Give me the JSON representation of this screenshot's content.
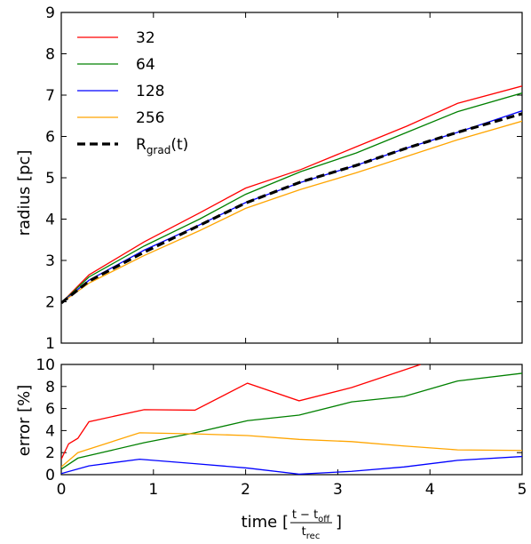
{
  "chart_data": [
    {
      "type": "line",
      "ylabel": "radius [pc]",
      "xlim": [
        0,
        5
      ],
      "ylim": [
        1,
        9
      ],
      "x_ticks": [
        "0",
        "1",
        "2",
        "3",
        "4",
        "5"
      ],
      "y_ticks": [
        "1",
        "2",
        "3",
        "4",
        "5",
        "6",
        "7",
        "8",
        "9"
      ],
      "legend_position": "top-left",
      "series": [
        {
          "name": "32",
          "color": "#ff0000",
          "style": "solid",
          "x": [
            0,
            0.3,
            0.9,
            1.5,
            2.0,
            2.6,
            3.2,
            3.75,
            4.3,
            5.0
          ],
          "y": [
            1.97,
            2.65,
            3.45,
            4.15,
            4.75,
            5.2,
            5.75,
            6.25,
            6.8,
            7.22
          ]
        },
        {
          "name": "64",
          "color": "#008000",
          "style": "solid",
          "x": [
            0,
            0.3,
            0.9,
            1.5,
            2.0,
            2.6,
            3.2,
            3.75,
            4.3,
            5.0
          ],
          "y": [
            1.97,
            2.6,
            3.35,
            4.0,
            4.6,
            5.15,
            5.6,
            6.1,
            6.6,
            7.05
          ]
        },
        {
          "name": "128",
          "color": "#0000ff",
          "style": "solid",
          "x": [
            0,
            0.3,
            0.9,
            1.5,
            2.0,
            2.6,
            3.2,
            3.75,
            4.3,
            5.0
          ],
          "y": [
            1.97,
            2.52,
            3.25,
            3.86,
            4.4,
            4.89,
            5.3,
            5.72,
            6.1,
            6.62
          ]
        },
        {
          "name": "256",
          "color": "#ffa500",
          "style": "solid",
          "x": [
            0,
            0.3,
            0.9,
            1.5,
            2.0,
            2.6,
            3.2,
            3.75,
            4.3,
            5.0
          ],
          "y": [
            1.97,
            2.45,
            3.12,
            3.72,
            4.26,
            4.72,
            5.12,
            5.52,
            5.92,
            6.37
          ]
        },
        {
          "name": "R",
          "name_sub": "grad",
          "name_suffix": "(t)",
          "color": "#000000",
          "style": "dashed",
          "x": [
            0,
            0.3,
            0.9,
            1.5,
            2.0,
            2.6,
            3.2,
            3.75,
            4.3,
            5.0
          ],
          "y": [
            1.97,
            2.5,
            3.2,
            3.85,
            4.39,
            4.9,
            5.3,
            5.72,
            6.1,
            6.55
          ]
        }
      ]
    },
    {
      "type": "line",
      "ylabel": "error [%]",
      "xlabel_prefix": "time [",
      "xlabel_suffix": "]",
      "xlabel_numerator": "t − t",
      "xlabel_numerator_sub": "off",
      "xlabel_denominator": "t",
      "xlabel_denominator_sub": "rec",
      "xlim": [
        0,
        5
      ],
      "ylim": [
        0,
        10
      ],
      "x_ticks": [
        "0",
        "1",
        "2",
        "3",
        "4",
        "5"
      ],
      "y_ticks": [
        "0",
        "2",
        "4",
        "6",
        "8",
        "10"
      ],
      "series": [
        {
          "name": "32",
          "color": "#ff0000",
          "x": [
            0,
            0.08,
            0.18,
            0.3,
            0.9,
            1.45,
            2.02,
            2.58,
            3.15,
            3.72,
            3.9
          ],
          "y": [
            1.4,
            2.8,
            3.3,
            4.8,
            5.9,
            5.85,
            8.3,
            6.7,
            7.9,
            9.5,
            10.0
          ]
        },
        {
          "name": "64",
          "color": "#008000",
          "x": [
            0,
            0.18,
            0.9,
            1.45,
            2.02,
            2.58,
            3.15,
            3.72,
            4.3,
            5.0
          ],
          "y": [
            0.5,
            1.5,
            2.9,
            3.8,
            4.9,
            5.4,
            6.6,
            7.1,
            8.5,
            9.2
          ]
        },
        {
          "name": "128",
          "color": "#0000ff",
          "x": [
            0,
            0.3,
            0.85,
            1.45,
            2.02,
            2.58,
            3.15,
            3.72,
            4.3,
            5.0
          ],
          "y": [
            0.1,
            0.8,
            1.4,
            1.0,
            0.6,
            0.05,
            0.3,
            0.7,
            1.3,
            1.65
          ]
        },
        {
          "name": "256",
          "color": "#ffa500",
          "x": [
            0,
            0.18,
            0.85,
            1.45,
            2.02,
            2.58,
            3.15,
            3.72,
            4.3,
            5.0
          ],
          "y": [
            0.7,
            2.0,
            3.8,
            3.7,
            3.55,
            3.2,
            3.0,
            2.6,
            2.25,
            2.2
          ]
        }
      ]
    }
  ]
}
